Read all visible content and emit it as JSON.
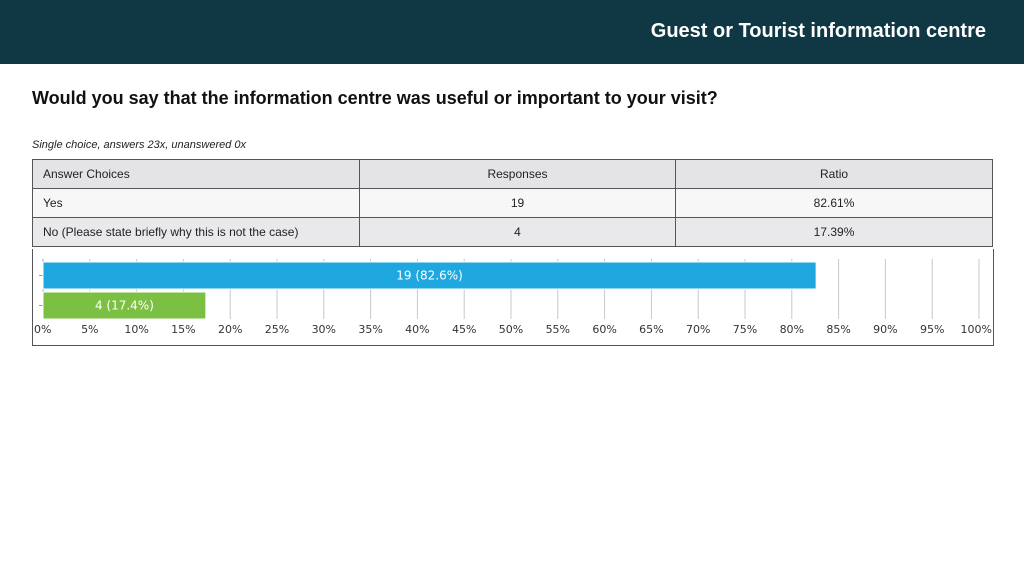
{
  "header": {
    "title": "Guest or Tourist information centre"
  },
  "question": "Would you say that the information centre was useful or important to your visit?",
  "meta": "Single choice, answers 23x, unanswered 0x",
  "table": {
    "headers": [
      "Answer Choices",
      "Responses",
      "Ratio"
    ],
    "rows": [
      {
        "choice": "Yes",
        "responses": "19",
        "ratio": "82.61%"
      },
      {
        "choice": "No (Please state briefly why this is not the case)",
        "responses": "4",
        "ratio": "17.39%"
      }
    ]
  },
  "chart_data": {
    "type": "bar",
    "orientation": "horizontal",
    "categories": [
      "Yes",
      "No (Please state briefly why this is not the case)"
    ],
    "values": [
      82.6,
      17.4
    ],
    "labels": [
      "19 (82.6%)",
      "4 (17.4%)"
    ],
    "colors": [
      "#1fa8e0",
      "#7bc043"
    ],
    "xlim": [
      0,
      100
    ],
    "x_ticks": [
      "0%",
      "5%",
      "10%",
      "15%",
      "20%",
      "25%",
      "30%",
      "35%",
      "40%",
      "45%",
      "50%",
      "55%",
      "60%",
      "65%",
      "70%",
      "75%",
      "80%",
      "85%",
      "90%",
      "95%",
      "100%"
    ],
    "grid": true
  }
}
